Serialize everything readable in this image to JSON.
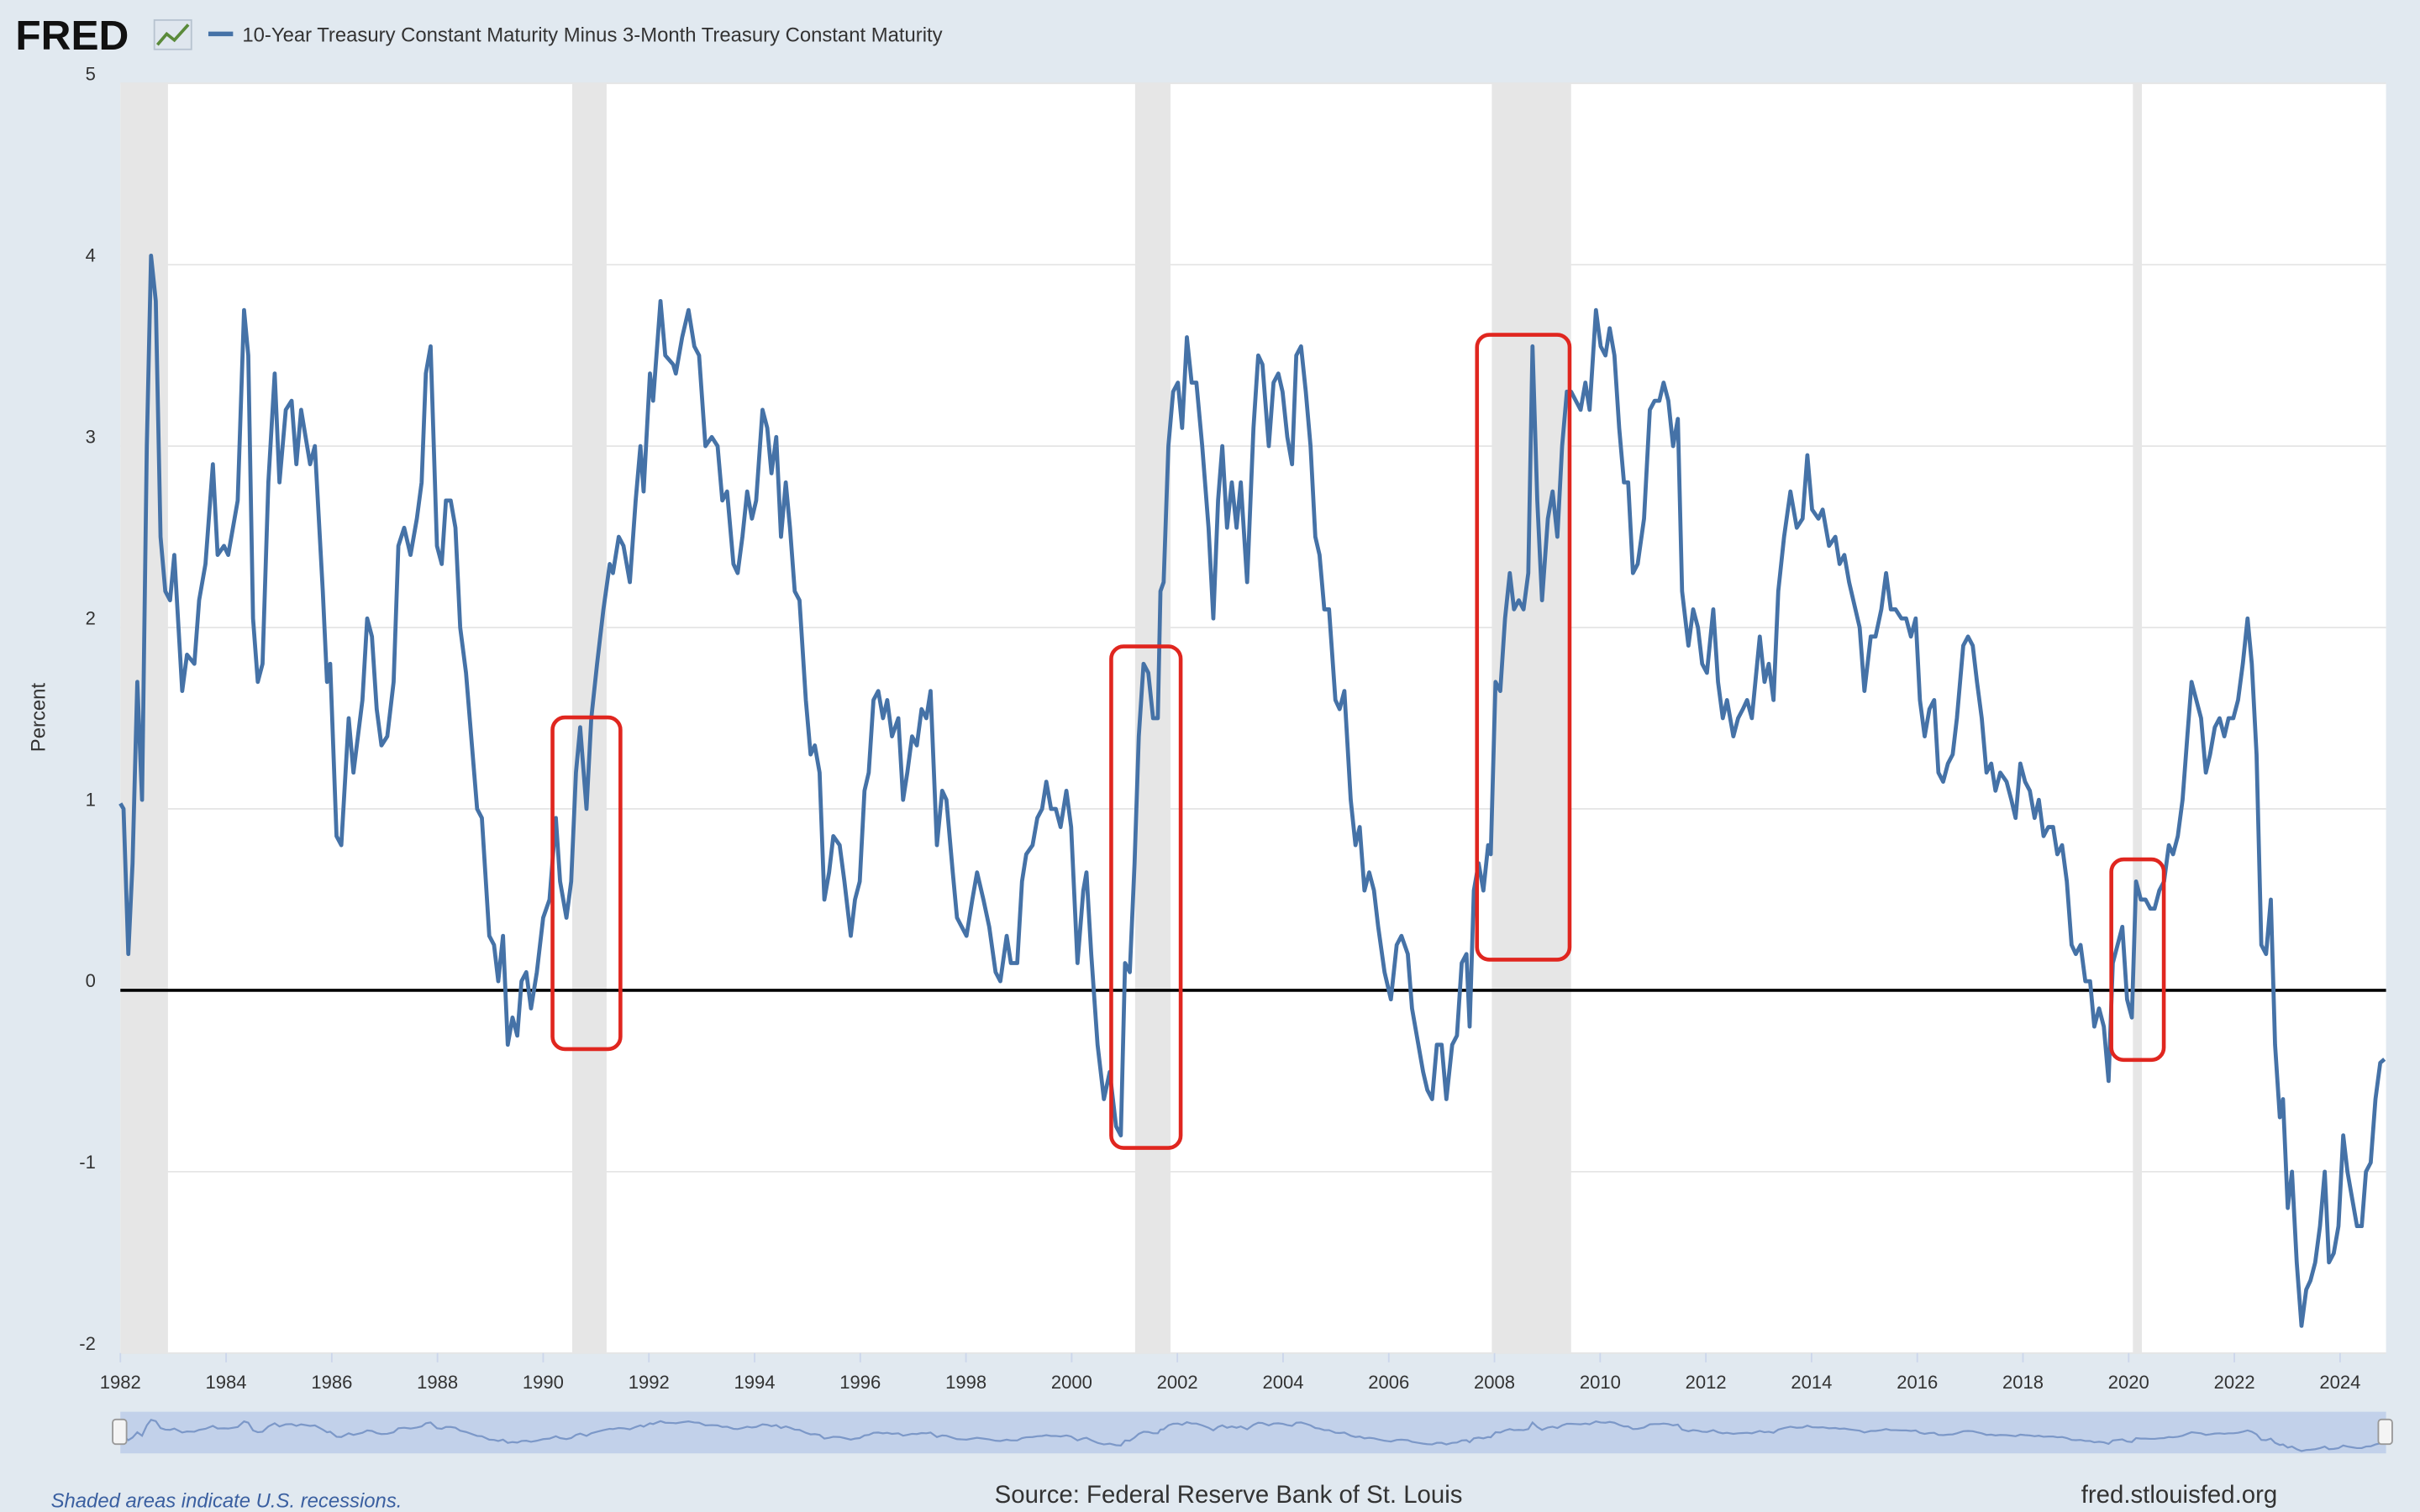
{
  "chart_data": {
    "type": "line",
    "logo": "FRED",
    "ylabel": "Percent",
    "note": "Shaded areas indicate U.S. recessions.",
    "source": "Source: Federal Reserve Bank of St. Louis",
    "site": "fred.stlouisfed.org",
    "xlim": [
      1982,
      2024.87
    ],
    "xticks": [
      1982,
      1984,
      1986,
      1988,
      1990,
      1992,
      1994,
      1996,
      1998,
      2000,
      2002,
      2004,
      2006,
      2008,
      2010,
      2012,
      2014,
      2016,
      2018,
      2020,
      2022,
      2024
    ],
    "ylim": [
      -2,
      5
    ],
    "yticks": [
      -2,
      -1,
      0,
      1,
      2,
      3,
      4,
      5
    ],
    "grid": true,
    "recessions": [
      [
        1982.0,
        1982.9
      ],
      [
        1990.55,
        1991.2
      ],
      [
        2001.2,
        2001.87
      ],
      [
        2007.95,
        2009.45
      ],
      [
        2020.08,
        2020.25
      ]
    ],
    "x": [
      1982.0,
      1982.06,
      1982.15,
      1982.23,
      1982.32,
      1982.41,
      1982.5,
      1982.58,
      1982.67,
      1982.76,
      1982.85,
      1982.94,
      1983.02,
      1983.17,
      1983.26,
      1983.4,
      1983.49,
      1983.61,
      1983.75,
      1983.84,
      1983.96,
      1984.04,
      1984.22,
      1984.34,
      1984.42,
      1984.51,
      1984.6,
      1984.69,
      1984.8,
      1984.92,
      1985.01,
      1985.13,
      1985.24,
      1985.33,
      1985.42,
      1985.59,
      1985.68,
      1985.83,
      1985.91,
      1985.97,
      1986.09,
      1986.18,
      1986.32,
      1986.41,
      1986.58,
      1986.67,
      1986.76,
      1986.85,
      1986.94,
      1987.05,
      1987.17,
      1987.26,
      1987.37,
      1987.49,
      1987.61,
      1987.7,
      1987.78,
      1987.87,
      1987.99,
      1988.08,
      1988.16,
      1988.25,
      1988.34,
      1988.43,
      1988.54,
      1988.75,
      1988.84,
      1988.98,
      1989.07,
      1989.15,
      1989.24,
      1989.33,
      1989.42,
      1989.51,
      1989.59,
      1989.68,
      1989.77,
      1989.88,
      1990.0,
      1990.12,
      1990.24,
      1990.32,
      1990.44,
      1990.53,
      1990.62,
      1990.7,
      1990.82,
      1990.91,
      1991.02,
      1991.14,
      1991.26,
      1991.32,
      1991.43,
      1991.52,
      1991.64,
      1991.75,
      1991.84,
      1991.9,
      1992.02,
      1992.08,
      1992.22,
      1992.31,
      1992.46,
      1992.51,
      1992.63,
      1992.75,
      1992.86,
      1992.95,
      1993.07,
      1993.19,
      1993.3,
      1993.39,
      1993.48,
      1993.6,
      1993.68,
      1993.77,
      1993.86,
      1993.95,
      1994.03,
      1994.15,
      1994.24,
      1994.32,
      1994.41,
      1994.5,
      1994.59,
      1994.67,
      1994.76,
      1994.85,
      1994.97,
      1995.06,
      1995.14,
      1995.23,
      1995.32,
      1995.41,
      1995.49,
      1995.61,
      1995.7,
      1995.82,
      1995.9,
      1995.99,
      1996.08,
      1996.16,
      1996.25,
      1996.34,
      1996.43,
      1996.51,
      1996.6,
      1996.72,
      1996.81,
      1996.89,
      1996.98,
      1997.07,
      1997.16,
      1997.25,
      1997.33,
      1997.45,
      1997.55,
      1997.63,
      1997.75,
      1997.83,
      1997.92,
      1998.01,
      1998.12,
      1998.21,
      1998.33,
      1998.44,
      1998.56,
      1998.65,
      1998.77,
      1998.85,
      1998.97,
      1999.06,
      1999.14,
      1999.26,
      1999.35,
      1999.44,
      1999.52,
      1999.61,
      1999.7,
      1999.79,
      1999.9,
      1999.99,
      2000.11,
      2000.22,
      2000.28,
      2000.37,
      2000.49,
      2000.61,
      2000.72,
      2000.84,
      2000.93,
      2001.01,
      2001.1,
      2001.19,
      2001.27,
      2001.36,
      2001.45,
      2001.54,
      2001.63,
      2001.68,
      2001.74,
      2001.83,
      2001.92,
      2002.01,
      2002.09,
      2002.18,
      2002.27,
      2002.36,
      2002.47,
      2002.59,
      2002.68,
      2002.77,
      2002.85,
      2002.94,
      2003.03,
      2003.12,
      2003.2,
      2003.32,
      2003.44,
      2003.53,
      2003.61,
      2003.73,
      2003.82,
      2003.91,
      2003.99,
      2004.08,
      2004.17,
      2004.25,
      2004.34,
      2004.43,
      2004.52,
      2004.61,
      2004.69,
      2004.78,
      2004.87,
      2004.99,
      2005.07,
      2005.16,
      2005.28,
      2005.37,
      2005.45,
      2005.54,
      2005.63,
      2005.72,
      2005.8,
      2005.92,
      2006.04,
      2006.15,
      2006.24,
      2006.36,
      2006.44,
      2006.56,
      2006.65,
      2006.73,
      2006.82,
      2006.91,
      2007.0,
      2007.09,
      2007.2,
      2007.29,
      2007.38,
      2007.47,
      2007.53,
      2007.61,
      2007.7,
      2007.79,
      2007.88,
      2007.93,
      2008.02,
      2008.11,
      2008.2,
      2008.29,
      2008.37,
      2008.46,
      2008.55,
      2008.64,
      2008.72,
      2008.81,
      2008.9,
      2009.01,
      2009.1,
      2009.19,
      2009.28,
      2009.37,
      2009.45,
      2009.54,
      2009.63,
      2009.72,
      2009.8,
      2009.92,
      2010.01,
      2010.1,
      2010.18,
      2010.27,
      2010.36,
      2010.45,
      2010.53,
      2010.62,
      2010.71,
      2010.83,
      2010.94,
      2011.03,
      2011.12,
      2011.2,
      2011.29,
      2011.38,
      2011.47,
      2011.55,
      2011.67,
      2011.76,
      2011.85,
      2011.93,
      2012.02,
      2012.14,
      2012.23,
      2012.32,
      2012.4,
      2012.52,
      2012.61,
      2012.7,
      2012.78,
      2012.87,
      2013.02,
      2013.11,
      2013.19,
      2013.28,
      2013.37,
      2013.48,
      2013.6,
      2013.72,
      2013.83,
      2013.92,
      2014.01,
      2014.13,
      2014.21,
      2014.33,
      2014.45,
      2014.53,
      2014.62,
      2014.71,
      2014.83,
      2014.91,
      2015.0,
      2015.12,
      2015.21,
      2015.32,
      2015.41,
      2015.5,
      2015.59,
      2015.7,
      2015.79,
      2015.88,
      2015.97,
      2016.05,
      2016.14,
      2016.23,
      2016.32,
      2016.4,
      2016.49,
      2016.58,
      2016.67,
      2016.75,
      2016.87,
      2016.96,
      2017.05,
      2017.13,
      2017.22,
      2017.31,
      2017.4,
      2017.48,
      2017.57,
      2017.69,
      2017.78,
      2017.86,
      2017.95,
      2018.04,
      2018.13,
      2018.22,
      2018.3,
      2018.39,
      2018.48,
      2018.57,
      2018.65,
      2018.74,
      2018.83,
      2018.92,
      2019.0,
      2019.09,
      2019.18,
      2019.27,
      2019.35,
      2019.44,
      2019.53,
      2019.62,
      2019.7,
      2019.79,
      2019.88,
      2019.97,
      2020.06,
      2020.14,
      2020.23,
      2020.32,
      2020.41,
      2020.49,
      2020.58,
      2020.67,
      2020.76,
      2020.84,
      2020.93,
      2021.02,
      2021.11,
      2021.19,
      2021.28,
      2021.37,
      2021.46,
      2021.54,
      2021.63,
      2021.72,
      2021.81,
      2021.89,
      2021.98,
      2022.07,
      2022.16,
      2022.25,
      2022.33,
      2022.42,
      2022.51,
      2022.6,
      2022.69,
      2022.77,
      2022.86,
      2022.92,
      2023.01,
      2023.09,
      2023.18,
      2023.27,
      2023.36,
      2023.44,
      2023.53,
      2023.62,
      2023.71,
      2023.79,
      2023.88,
      2023.97,
      2024.06,
      2024.14,
      2024.23,
      2024.32,
      2024.41,
      2024.49,
      2024.58,
      2024.67,
      2024.76,
      2024.84
    ],
    "series": [
      {
        "name": "10-Year Treasury Constant Maturity Minus 3-Month Treasury Constant Maturity",
        "color": "#4572a7",
        "values": [
          1.03,
          1.0,
          0.2,
          0.7,
          1.7,
          1.05,
          3.0,
          4.05,
          3.8,
          2.5,
          2.2,
          2.15,
          2.4,
          1.65,
          1.85,
          1.8,
          2.15,
          2.35,
          2.9,
          2.4,
          2.45,
          2.4,
          2.7,
          3.75,
          3.5,
          2.05,
          1.7,
          1.8,
          2.8,
          3.4,
          2.8,
          3.2,
          3.25,
          2.9,
          3.2,
          2.9,
          3.0,
          2.2,
          1.7,
          1.8,
          0.85,
          0.8,
          1.5,
          1.2,
          1.6,
          2.05,
          1.95,
          1.55,
          1.35,
          1.4,
          1.7,
          2.45,
          2.55,
          2.4,
          2.6,
          2.8,
          3.4,
          3.55,
          2.45,
          2.35,
          2.7,
          2.7,
          2.55,
          2.0,
          1.75,
          1.0,
          0.95,
          0.3,
          0.25,
          0.05,
          0.3,
          -0.3,
          -0.15,
          -0.25,
          0.05,
          0.1,
          -0.1,
          0.1,
          0.4,
          0.5,
          0.95,
          0.6,
          0.4,
          0.6,
          1.2,
          1.45,
          1.0,
          1.5,
          1.8,
          2.1,
          2.35,
          2.3,
          2.5,
          2.45,
          2.25,
          2.7,
          3.0,
          2.75,
          3.4,
          3.25,
          3.8,
          3.5,
          3.45,
          3.4,
          3.6,
          3.75,
          3.55,
          3.5,
          3.0,
          3.05,
          3.0,
          2.7,
          2.75,
          2.35,
          2.3,
          2.5,
          2.75,
          2.6,
          2.7,
          3.2,
          3.1,
          2.85,
          3.05,
          2.5,
          2.8,
          2.55,
          2.2,
          2.15,
          1.6,
          1.3,
          1.35,
          1.2,
          0.5,
          0.65,
          0.85,
          0.8,
          0.6,
          0.3,
          0.5,
          0.6,
          1.1,
          1.2,
          1.6,
          1.65,
          1.5,
          1.6,
          1.4,
          1.5,
          1.05,
          1.2,
          1.4,
          1.35,
          1.55,
          1.5,
          1.65,
          0.8,
          1.1,
          1.05,
          0.65,
          0.4,
          0.35,
          0.3,
          0.5,
          0.65,
          0.5,
          0.35,
          0.1,
          0.05,
          0.3,
          0.15,
          0.15,
          0.6,
          0.75,
          0.8,
          0.95,
          1.0,
          1.15,
          1.0,
          1.0,
          0.9,
          1.1,
          0.9,
          0.15,
          0.55,
          0.65,
          0.2,
          -0.3,
          -0.6,
          -0.45,
          -0.75,
          -0.8,
          0.15,
          0.1,
          0.7,
          1.4,
          1.8,
          1.75,
          1.5,
          1.5,
          2.2,
          2.25,
          3.0,
          3.3,
          3.35,
          3.1,
          3.6,
          3.35,
          3.35,
          3.0,
          2.55,
          2.05,
          2.7,
          3.0,
          2.55,
          2.8,
          2.55,
          2.8,
          2.25,
          3.1,
          3.5,
          3.45,
          3.0,
          3.35,
          3.4,
          3.3,
          3.05,
          2.9,
          3.5,
          3.55,
          3.3,
          3.0,
          2.5,
          2.4,
          2.1,
          2.1,
          1.6,
          1.55,
          1.65,
          1.05,
          0.8,
          0.9,
          0.55,
          0.65,
          0.55,
          0.35,
          0.1,
          -0.05,
          0.25,
          0.3,
          0.2,
          -0.1,
          -0.3,
          -0.45,
          -0.55,
          -0.6,
          -0.3,
          -0.3,
          -0.6,
          -0.3,
          -0.25,
          0.15,
          0.2,
          -0.2,
          0.55,
          0.7,
          0.55,
          0.8,
          0.75,
          1.7,
          1.65,
          2.05,
          2.3,
          2.1,
          2.15,
          2.1,
          2.3,
          3.55,
          2.7,
          2.15,
          2.6,
          2.75,
          2.5,
          3.0,
          3.3,
          3.3,
          3.25,
          3.2,
          3.35,
          3.2,
          3.75,
          3.55,
          3.5,
          3.65,
          3.5,
          3.1,
          2.8,
          2.8,
          2.3,
          2.35,
          2.6,
          3.2,
          3.25,
          3.25,
          3.35,
          3.25,
          3.0,
          3.15,
          2.2,
          1.9,
          2.1,
          2.0,
          1.8,
          1.75,
          2.1,
          1.7,
          1.5,
          1.6,
          1.4,
          1.5,
          1.55,
          1.6,
          1.5,
          1.95,
          1.7,
          1.8,
          1.6,
          2.2,
          2.5,
          2.75,
          2.55,
          2.6,
          2.95,
          2.65,
          2.6,
          2.65,
          2.45,
          2.5,
          2.35,
          2.4,
          2.25,
          2.1,
          2.0,
          1.65,
          1.95,
          1.95,
          2.1,
          2.3,
          2.1,
          2.1,
          2.05,
          2.05,
          1.95,
          2.05,
          1.6,
          1.4,
          1.55,
          1.6,
          1.2,
          1.15,
          1.25,
          1.3,
          1.5,
          1.9,
          1.95,
          1.9,
          1.7,
          1.5,
          1.2,
          1.25,
          1.1,
          1.2,
          1.15,
          1.05,
          0.95,
          1.25,
          1.15,
          1.1,
          0.95,
          1.05,
          0.85,
          0.9,
          0.9,
          0.75,
          0.8,
          0.6,
          0.25,
          0.2,
          0.25,
          0.05,
          0.05,
          -0.2,
          -0.1,
          -0.2,
          -0.5,
          0.15,
          0.25,
          0.35,
          -0.05,
          -0.15,
          0.6,
          0.5,
          0.5,
          0.45,
          0.45,
          0.55,
          0.6,
          0.8,
          0.75,
          0.85,
          1.05,
          1.4,
          1.7,
          1.6,
          1.5,
          1.2,
          1.3,
          1.45,
          1.5,
          1.4,
          1.5,
          1.5,
          1.6,
          1.8,
          2.05,
          1.8,
          1.3,
          0.25,
          0.2,
          0.5,
          -0.3,
          -0.7,
          -0.6,
          -1.2,
          -1.0,
          -1.5,
          -1.85,
          -1.65,
          -1.6,
          -1.5,
          -1.3,
          -1.0,
          -1.5,
          -1.45,
          -1.3,
          -0.8,
          -1.0,
          -1.15,
          -1.3,
          -1.3,
          -1.0,
          -0.95,
          -0.6,
          -0.4,
          -0.38
        ]
      }
    ]
  }
}
